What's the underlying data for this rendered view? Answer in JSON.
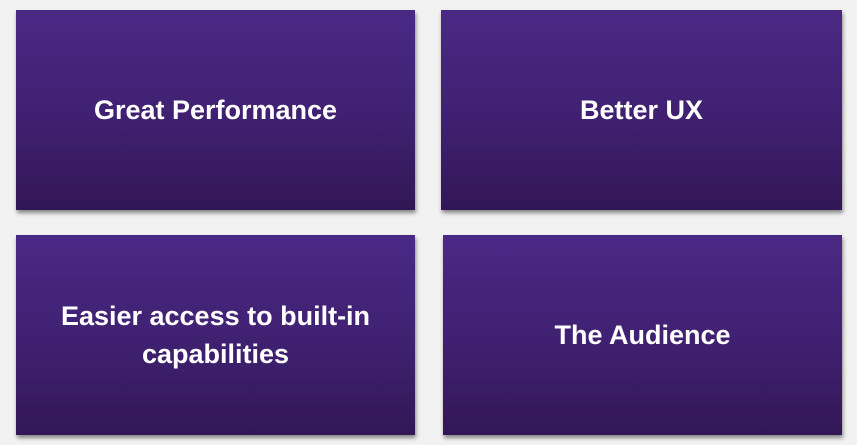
{
  "tiles": [
    {
      "label": "Great Performance"
    },
    {
      "label": "Better UX"
    },
    {
      "label": "Easier access to built-in capabilities"
    },
    {
      "label": "The Audience"
    }
  ],
  "colors": {
    "background": "#f2f2f2",
    "tile_top": "#4a2985",
    "tile_bottom": "#321756",
    "text": "#ffffff"
  }
}
